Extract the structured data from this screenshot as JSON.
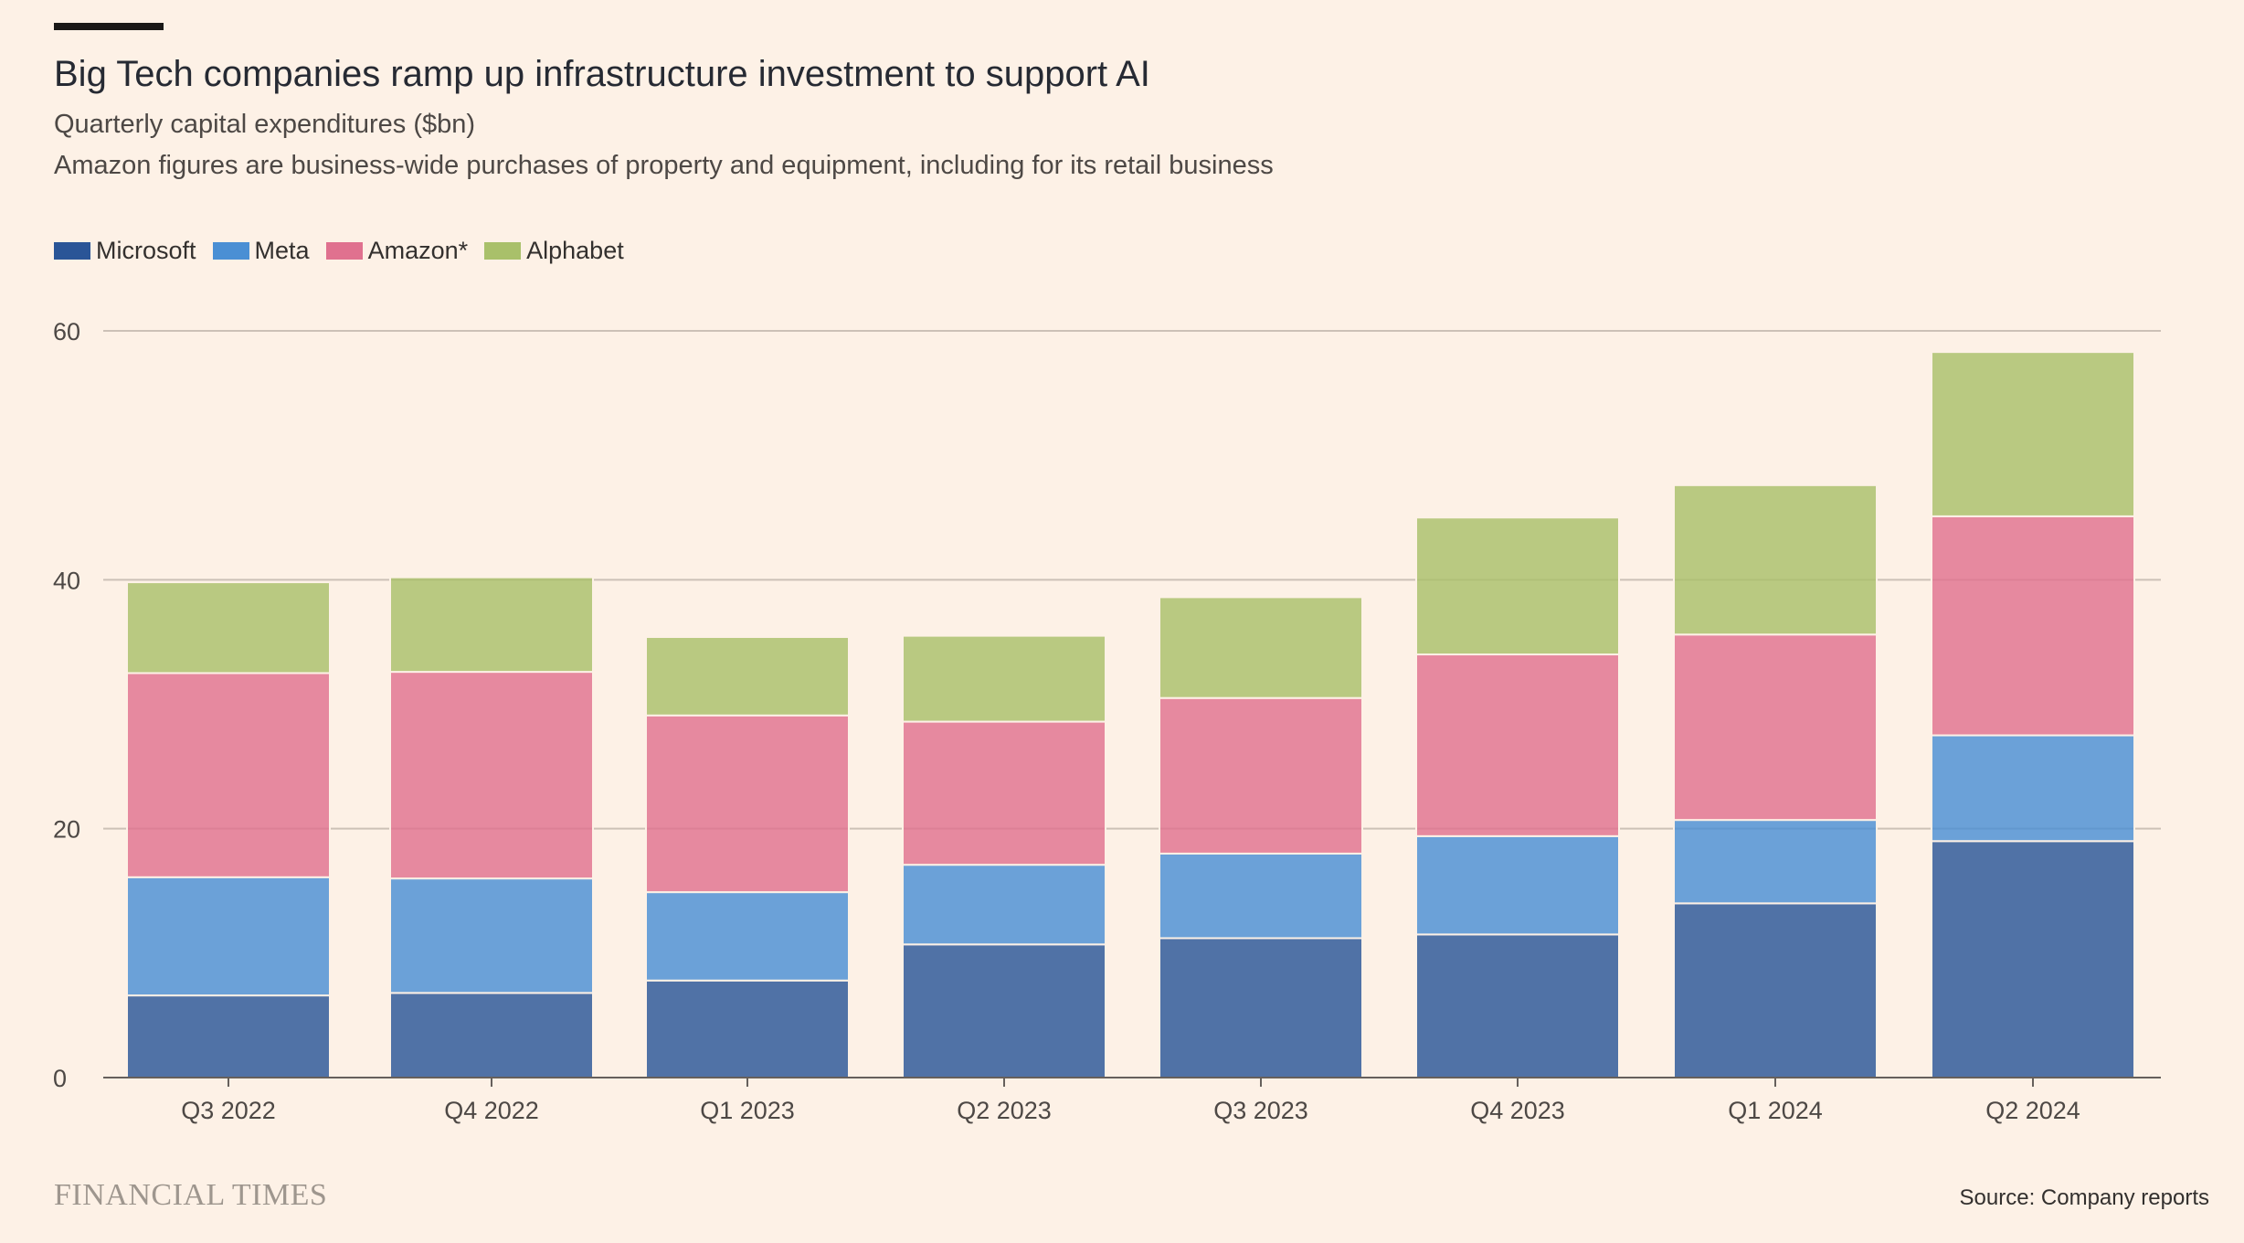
{
  "header": {
    "title": "Big Tech companies ramp up infrastructure investment to support AI",
    "subtitle": "Quarterly capital expenditures ($bn)",
    "note": "Amazon figures are business-wide purchases of property and equipment, including for its retail business"
  },
  "legend": [
    {
      "label": "Microsoft",
      "color": "#2a5597"
    },
    {
      "label": "Meta",
      "color": "#4a8fd4"
    },
    {
      "label": "Amazon*",
      "color": "#e0718f"
    },
    {
      "label": "Alphabet",
      "color": "#a9c06a"
    }
  ],
  "chart_data": {
    "type": "bar",
    "stacked": true,
    "title": "Big Tech companies ramp up infrastructure investment to support AI",
    "subtitle": "Quarterly capital expenditures ($bn)",
    "xlabel": "",
    "ylabel": "",
    "ylim": [
      0,
      60
    ],
    "yticks": [
      0,
      20,
      40,
      60
    ],
    "grid": true,
    "legend_position": "top-left",
    "categories": [
      "Q3 2022",
      "Q4 2022",
      "Q1 2023",
      "Q2 2023",
      "Q3 2023",
      "Q4 2023",
      "Q1 2024",
      "Q2 2024"
    ],
    "series": [
      {
        "name": "Microsoft",
        "color": "#2a5597",
        "values": [
          6.6,
          6.8,
          7.8,
          10.7,
          11.2,
          11.5,
          14.0,
          19.0
        ]
      },
      {
        "name": "Meta",
        "color": "#4a8fd4",
        "values": [
          9.5,
          9.2,
          7.1,
          6.4,
          6.8,
          7.9,
          6.7,
          8.5
        ]
      },
      {
        "name": "Amazon*",
        "color": "#e0718f",
        "values": [
          16.4,
          16.6,
          14.2,
          11.5,
          12.5,
          14.6,
          14.9,
          17.6
        ]
      },
      {
        "name": "Alphabet",
        "color": "#a9c06a",
        "values": [
          7.3,
          7.6,
          6.3,
          6.9,
          8.1,
          11.0,
          12.0,
          13.2
        ]
      }
    ]
  },
  "footer": {
    "brand": "FINANCIAL TIMES",
    "source": "Source: Company reports"
  }
}
